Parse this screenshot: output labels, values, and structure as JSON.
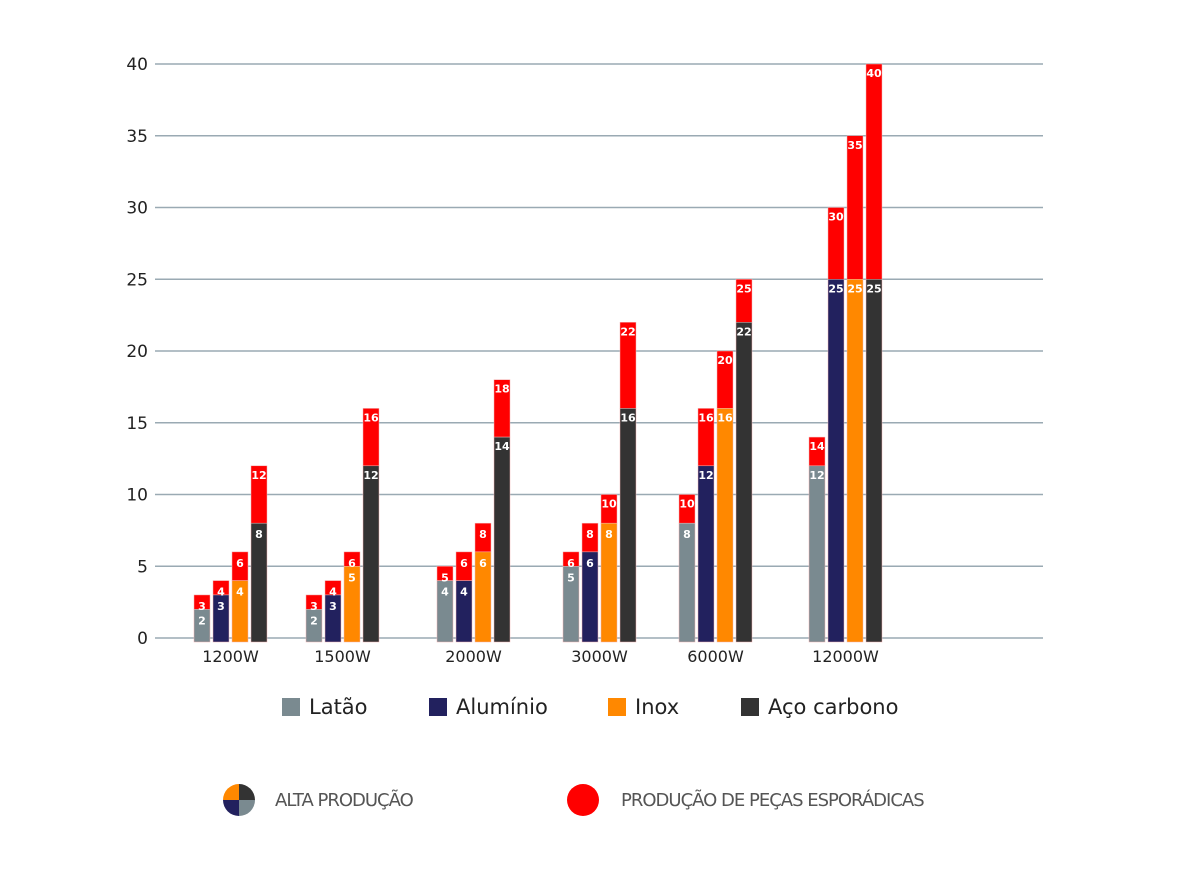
{
  "chart_data": {
    "type": "bar",
    "stacked": true,
    "title": "",
    "xlabel": "",
    "ylabel": "",
    "ylim": [
      0,
      40
    ],
    "yticks": [
      0,
      5,
      10,
      15,
      20,
      25,
      30,
      35,
      40
    ],
    "grid": true,
    "categories": [
      "1200W",
      "1500W",
      "2000W",
      "3000W",
      "6000W",
      "12000W"
    ],
    "series": [
      {
        "name": "Latão",
        "color": "#7a8a90",
        "high_production": [
          2,
          2,
          4,
          5,
          8,
          12
        ],
        "sporadic_production": [
          3,
          3,
          5,
          6,
          10,
          14
        ]
      },
      {
        "name": "Alumínio",
        "color": "#22215e",
        "high_production": [
          3,
          3,
          4,
          6,
          12,
          25
        ],
        "sporadic_production": [
          4,
          4,
          6,
          8,
          16,
          30
        ]
      },
      {
        "name": "Inox",
        "color": "#ff8800",
        "high_production": [
          4,
          5,
          6,
          8,
          16,
          25
        ],
        "sporadic_production": [
          6,
          6,
          8,
          10,
          20,
          35
        ]
      },
      {
        "name": "Aço carbono",
        "color": "#333333",
        "high_production": [
          8,
          12,
          14,
          16,
          22,
          25
        ],
        "sporadic_production": [
          12,
          16,
          18,
          22,
          25,
          40
        ]
      }
    ],
    "sporadic_color": "#ff0000",
    "legend": {
      "placement": "bottom",
      "materials": [
        "Latão",
        "Alumínio",
        "Inox",
        "Aço carbono"
      ],
      "modes": [
        "ALTA PRODUÇÃO",
        "PRODUÇÃO DE PEÇAS ESPORÁDICAS"
      ]
    }
  },
  "colors": {
    "grid": "#9aaab3",
    "latao": "#7a8a90",
    "aluminio": "#22215e",
    "inox": "#ff8800",
    "aco": "#333333",
    "sporadic": "#ff0000"
  },
  "legend": {
    "latao": "Latão",
    "aluminio": "Alumínio",
    "inox": "Inox",
    "aco": "Aço carbono"
  },
  "footer": {
    "high": "ALTA PRODUÇÃO",
    "sporadic": "PRODUÇÃO DE PEÇAS ESPORÁDICAS"
  }
}
